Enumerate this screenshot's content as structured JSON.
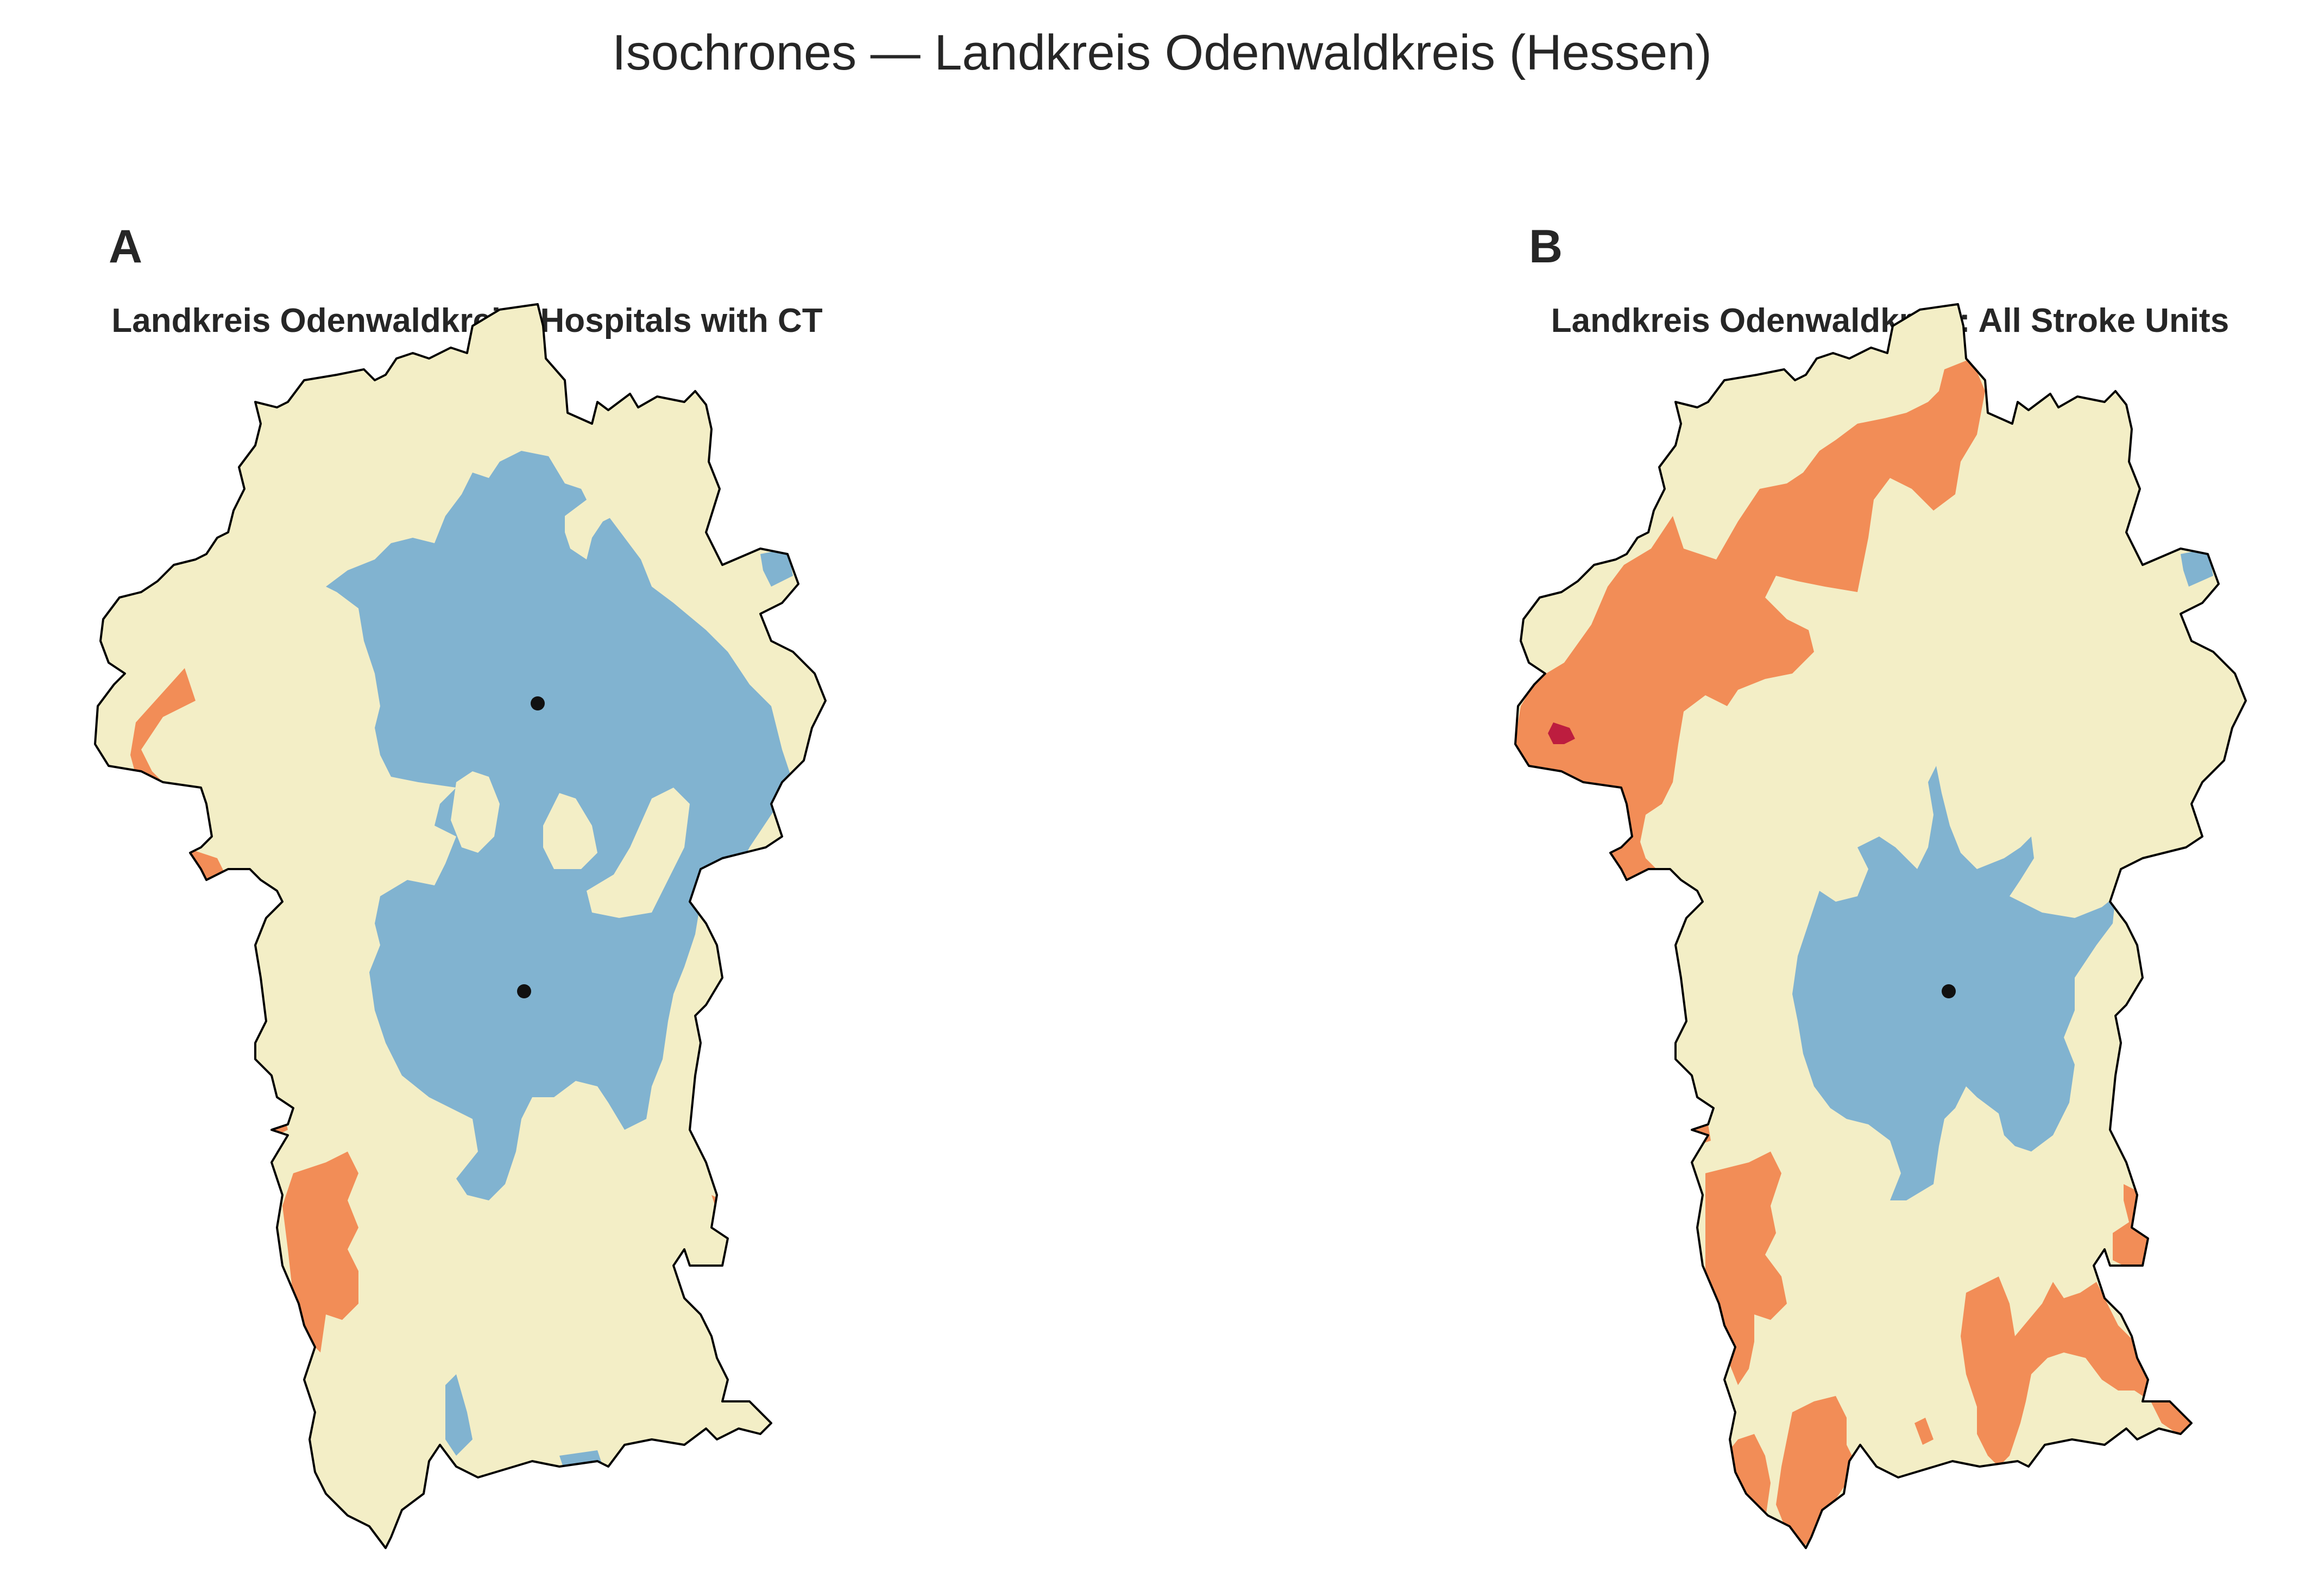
{
  "figure": {
    "title": "Isochrones — Landkreis Odenwaldkreis (Hessen)"
  },
  "colors": {
    "background": "#ffffff",
    "land": "#f3eec6",
    "near": "#81b3d0",
    "far": "#f28d57",
    "farthest": "#bd1d3f",
    "outline": "#000000",
    "facility": "#111111"
  },
  "panels": [
    {
      "letter": "A",
      "title": "Landkreis Odenwaldkreis: Hospitals with CT",
      "facility_count": 2
    },
    {
      "letter": "B",
      "title": "Landkreis Odenwaldkreis: All Stroke Units",
      "facility_count": 1
    }
  ]
}
